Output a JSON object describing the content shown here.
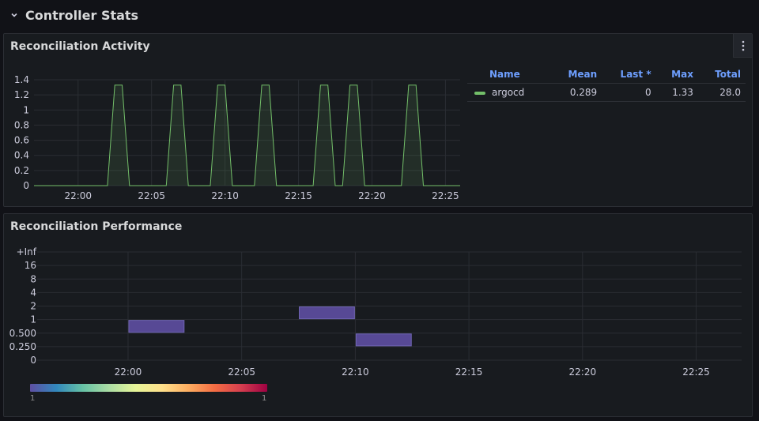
{
  "row": {
    "title": "Controller Stats"
  },
  "activity": {
    "title": "Reconciliation Activity",
    "legend": {
      "headers": {
        "name": "Name",
        "mean": "Mean",
        "last": "Last *",
        "max": "Max",
        "total": "Total"
      },
      "rows": [
        {
          "name": "argocd",
          "mean": "0.289",
          "last": "0",
          "max": "1.33",
          "total": "28.0",
          "color": "#73bf69"
        }
      ]
    }
  },
  "performance": {
    "title": "Reconciliation Performance",
    "scale": {
      "min_label": "1",
      "max_label": "1"
    }
  },
  "chart_data": [
    {
      "type": "area",
      "title": "Reconciliation Activity",
      "y_ticks": [
        "0",
        "0.2",
        "0.4",
        "0.6",
        "0.8",
        "1",
        "1.2",
        "1.4"
      ],
      "ylim": [
        0,
        1.4
      ],
      "x_ticks": [
        "22:00",
        "22:05",
        "22:10",
        "22:15",
        "22:20",
        "22:25"
      ],
      "xlim": [
        "21:57",
        "22:26"
      ],
      "grid": true,
      "series": [
        {
          "name": "argocd",
          "color": "#73bf69",
          "x": [
            "21:57",
            "22:02",
            "22:02:30",
            "22:03",
            "22:03:30",
            "22:06",
            "22:06:30",
            "22:07",
            "22:07:30",
            "22:09",
            "22:09:30",
            "22:10",
            "22:10:30",
            "22:12",
            "22:12:30",
            "22:13",
            "22:13:30",
            "22:16",
            "22:16:30",
            "22:17",
            "22:17:30",
            "22:18",
            "22:18:30",
            "22:19",
            "22:19:30",
            "22:22",
            "22:22:30",
            "22:23",
            "22:23:30",
            "22:26"
          ],
          "y": [
            0,
            0,
            1.33,
            1.33,
            0,
            0,
            1.33,
            1.33,
            0,
            0,
            1.33,
            1.33,
            0,
            0,
            1.33,
            1.33,
            0,
            0,
            1.33,
            1.33,
            0,
            0,
            1.33,
            1.33,
            0,
            0,
            1.33,
            1.33,
            0,
            0
          ]
        }
      ]
    },
    {
      "type": "heatmap",
      "title": "Reconciliation Performance",
      "y_ticks": [
        "0",
        "0.250",
        "0.500",
        "1",
        "2",
        "4",
        "8",
        "16",
        "+Inf"
      ],
      "x_ticks": [
        "22:00",
        "22:05",
        "22:10",
        "22:15",
        "22:20",
        "22:25"
      ],
      "xlim": [
        "21:56",
        "22:27"
      ],
      "grid": true,
      "cells": [
        {
          "x_start": "22:00",
          "x_end": "22:02:30",
          "y_bucket": "0.500–1",
          "count": 1
        },
        {
          "x_start": "22:07:30",
          "x_end": "22:10",
          "y_bucket": "1–2",
          "count": 1
        },
        {
          "x_start": "22:10",
          "x_end": "22:12:30",
          "y_bucket": "0.250–0.500",
          "count": 1
        }
      ],
      "color_scale": {
        "min": 1,
        "max": 1,
        "scheme": "Spectral"
      }
    }
  ]
}
